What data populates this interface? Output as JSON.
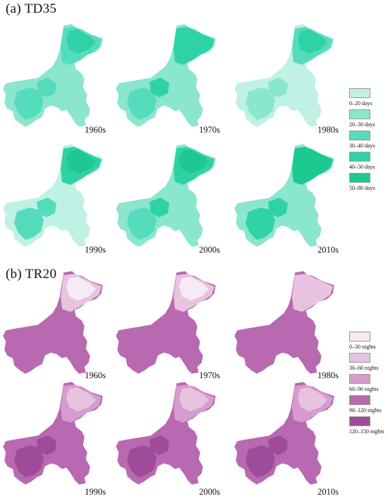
{
  "panels": [
    {
      "title": "(a)  TD35",
      "decades": [
        "1960s",
        "1970s",
        "1980s",
        "1990s",
        "2000s",
        "2010s"
      ],
      "legend": [
        {
          "label": "0–20 days",
          "color": "#bff1e4"
        },
        {
          "label": "20–30 days",
          "color": "#8ae6cd"
        },
        {
          "label": "30–40 days",
          "color": "#55dcbc"
        },
        {
          "label": "40–50 days",
          "color": "#2fd2a6"
        },
        {
          "label": "50–80 days",
          "color": "#1dc891"
        }
      ],
      "maps": [
        {
          "decade": "1960s",
          "base": 1,
          "sw": 2,
          "center": 2,
          "ne": 2,
          "neCore": 3
        },
        {
          "decade": "1970s",
          "base": 1,
          "sw": 2,
          "center": 3,
          "ne": 3,
          "neCore": 3
        },
        {
          "decade": "1980s",
          "base": 0,
          "sw": 1,
          "center": 1,
          "ne": 2,
          "neCore": 3
        },
        {
          "decade": "1990s",
          "base": 0,
          "sw": 2,
          "center": 2,
          "ne": 3,
          "neCore": 4
        },
        {
          "decade": "2000s",
          "base": 1,
          "sw": 2,
          "center": 3,
          "ne": 3,
          "neCore": 4
        },
        {
          "decade": "2010s",
          "base": 1,
          "sw": 3,
          "center": 3,
          "ne": 4,
          "neCore": 4
        }
      ]
    },
    {
      "title": "(b)  TR20",
      "decades": [
        "1960s",
        "1970s",
        "1980s",
        "1990s",
        "2000s",
        "2010s"
      ],
      "legend": [
        {
          "label": "0–30 nights",
          "color": "#f6eaf4"
        },
        {
          "label": "30–60 nights",
          "color": "#e8c3e0"
        },
        {
          "label": "60–90 nights",
          "color": "#d59ccd"
        },
        {
          "label": "90–120 nights",
          "color": "#b869b0"
        },
        {
          "label": "120–150 nights",
          "color": "#9e4c99"
        }
      ],
      "maps": [
        {
          "decade": "1960s",
          "base": 3,
          "sw": 3,
          "center": 3,
          "ne": 1,
          "neCore": 0
        },
        {
          "decade": "1970s",
          "base": 3,
          "sw": 3,
          "center": 3,
          "ne": 1,
          "neCore": 0
        },
        {
          "decade": "1980s",
          "base": 3,
          "sw": 3,
          "center": 3,
          "ne": 1,
          "neCore": 1
        },
        {
          "decade": "1990s",
          "base": 3,
          "sw": 4,
          "center": 4,
          "ne": 2,
          "neCore": 1
        },
        {
          "decade": "2000s",
          "base": 3,
          "sw": 4,
          "center": 4,
          "ne": 2,
          "neCore": 1
        },
        {
          "decade": "2010s",
          "base": 3,
          "sw": 4,
          "center": 4,
          "ne": 2,
          "neCore": 1
        }
      ]
    }
  ]
}
